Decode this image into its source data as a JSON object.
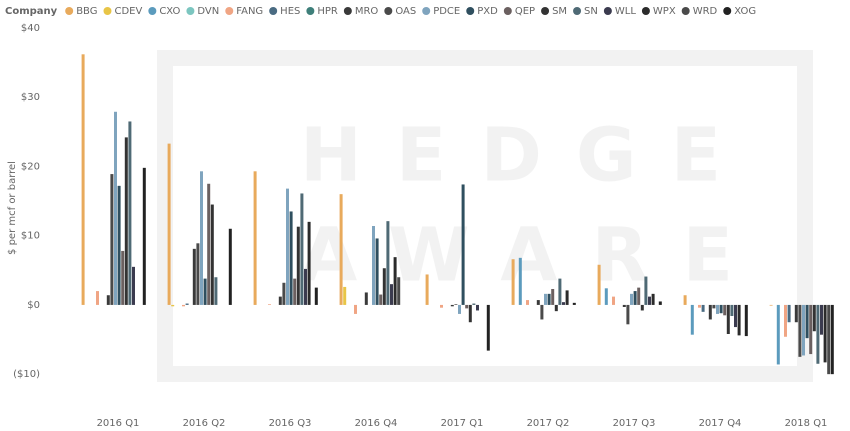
{
  "watermark": [
    "HEDGE",
    "AWARE"
  ],
  "chart_data": {
    "type": "bar",
    "legend_title": "Company",
    "legend_position": "top-left",
    "y_label": "$ per mcf or barrel",
    "categories": [
      "2016 Q1",
      "2016 Q2",
      "2016 Q3",
      "2016 Q4",
      "2017 Q1",
      "2017 Q2",
      "2017 Q3",
      "2017 Q4",
      "2018 Q1"
    ],
    "ylim": [
      -12,
      40
    ],
    "yticks": [
      {
        "value": -10,
        "label": "($10)"
      },
      {
        "value": 0,
        "label": "$0"
      },
      {
        "value": 10,
        "label": "$10"
      },
      {
        "value": 20,
        "label": "$20"
      },
      {
        "value": 30,
        "label": "$30"
      },
      {
        "value": 40,
        "label": "$40"
      }
    ],
    "grid": false,
    "series": [
      {
        "name": "BBG",
        "color": "#e8aa5c",
        "values": [
          36.2,
          23.3,
          19.3,
          16.0,
          4.4,
          6.6,
          5.8,
          1.4,
          -0.1
        ]
      },
      {
        "name": "CDEV",
        "color": "#e8c547",
        "values": [
          null,
          -0.2,
          null,
          2.6,
          null,
          null,
          null,
          null,
          null
        ]
      },
      {
        "name": "CXO",
        "color": "#5b9bbd",
        "values": [
          null,
          null,
          null,
          null,
          null,
          6.8,
          2.4,
          -4.3,
          -8.6
        ]
      },
      {
        "name": "DVN",
        "color": "#7cc6c0",
        "values": [
          null,
          null,
          null,
          null,
          null,
          null,
          null,
          null,
          null
        ]
      },
      {
        "name": "FANG",
        "color": "#f0a584",
        "values": [
          2.0,
          -0.2,
          0.1,
          -1.3,
          -0.4,
          0.7,
          1.2,
          -0.4,
          -4.6
        ]
      },
      {
        "name": "HES",
        "color": "#4a6b82",
        "values": [
          null,
          0.2,
          null,
          null,
          null,
          null,
          null,
          -1.0,
          -2.5
        ]
      },
      {
        "name": "HPR",
        "color": "#3e7f7a",
        "values": [
          null,
          null,
          null,
          null,
          null,
          null,
          null,
          null,
          null
        ]
      },
      {
        "name": "MRO",
        "color": "#3a3a3a",
        "values": [
          1.4,
          8.1,
          1.2,
          1.8,
          -0.2,
          0.7,
          -0.3,
          -2.1,
          -2.5
        ]
      },
      {
        "name": "OAS",
        "color": "#4a4a4a",
        "values": [
          18.9,
          8.9,
          3.2,
          null,
          0.1,
          -2.1,
          -2.8,
          -0.5,
          -7.5
        ]
      },
      {
        "name": "PDCE",
        "color": "#7fa4be",
        "values": [
          27.9,
          19.3,
          16.8,
          11.4,
          -1.3,
          1.6,
          1.6,
          -1.3,
          -7.3
        ]
      },
      {
        "name": "PXD",
        "color": "#2f4f5f",
        "values": [
          17.2,
          3.8,
          13.5,
          9.6,
          17.4,
          1.6,
          2.0,
          -1.2,
          -4.8
        ]
      },
      {
        "name": "QEP",
        "color": "#6b6060",
        "values": [
          7.8,
          17.5,
          3.8,
          1.5,
          -0.5,
          2.3,
          2.5,
          -1.5,
          -7.1
        ]
      },
      {
        "name": "SM",
        "color": "#333333",
        "values": [
          24.2,
          14.5,
          11.3,
          5.3,
          -2.5,
          -0.9,
          -0.8,
          -4.2,
          -3.8
        ]
      },
      {
        "name": "SN",
        "color": "#4f6a75",
        "values": [
          26.5,
          4.0,
          16.1,
          12.1,
          0.2,
          3.8,
          4.1,
          -1.6,
          -8.5
        ]
      },
      {
        "name": "WLL",
        "color": "#3b3b4f",
        "values": [
          5.5,
          null,
          5.2,
          3.0,
          -0.8,
          0.4,
          1.2,
          -3.2,
          -4.3
        ]
      },
      {
        "name": "WPX",
        "color": "#2b2b2b",
        "values": [
          null,
          null,
          12.0,
          6.9,
          null,
          2.1,
          1.6,
          -4.4,
          -8.3
        ]
      },
      {
        "name": "WRD",
        "color": "#4a4a4a",
        "values": [
          null,
          null,
          null,
          4.0,
          null,
          null,
          null,
          null,
          -10
        ]
      },
      {
        "name": "XOG",
        "color": "#222222",
        "values": [
          19.8,
          11.0,
          2.5,
          null,
          -6.6,
          0.3,
          0.5,
          -4.5,
          -10
        ]
      }
    ]
  }
}
